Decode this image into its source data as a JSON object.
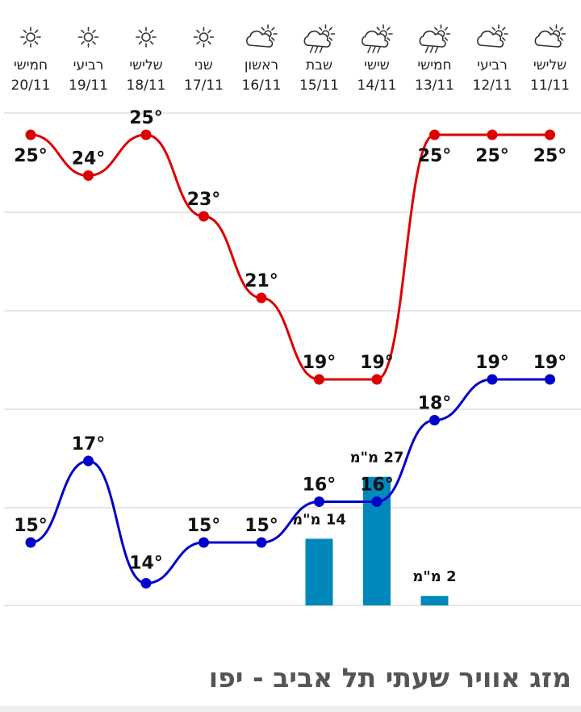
{
  "footer": {
    "title": "מזג אוויר שעתי תל אביב - יפו"
  },
  "colors": {
    "high": "#dd0000",
    "low": "#0000cc",
    "rain": "#0088bb",
    "grid": "#dddddd"
  },
  "chart_data": {
    "type": "line",
    "categories": [
      {
        "day": "חמישי",
        "date": "20/11",
        "icon": "sun-icon"
      },
      {
        "day": "רביעי",
        "date": "19/11",
        "icon": "sun-icon"
      },
      {
        "day": "שלישי",
        "date": "18/11",
        "icon": "sun-icon"
      },
      {
        "day": "שני",
        "date": "17/11",
        "icon": "sun-icon"
      },
      {
        "day": "ראשון",
        "date": "16/11",
        "icon": "partly-cloudy-icon"
      },
      {
        "day": "שבת",
        "date": "15/11",
        "icon": "rain-cloud-sun-icon"
      },
      {
        "day": "שישי",
        "date": "14/11",
        "icon": "rain-cloud-sun-icon"
      },
      {
        "day": "חמישי",
        "date": "13/11",
        "icon": "rain-cloud-sun-icon"
      },
      {
        "day": "רביעי",
        "date": "12/11",
        "icon": "partly-cloudy-icon"
      },
      {
        "day": "שלישי",
        "date": "11/11",
        "icon": "partly-cloudy-icon"
      }
    ],
    "series": [
      {
        "values": [
          25,
          24,
          25,
          23,
          21,
          19,
          19,
          25,
          25,
          25
        ]
      },
      {
        "values": [
          15,
          17,
          14,
          15,
          15,
          16,
          16,
          18,
          19,
          19
        ]
      }
    ],
    "rain": [
      {
        "index": 5,
        "value": 14,
        "unit": "מ\"מ"
      },
      {
        "index": 6,
        "value": 27,
        "unit": "מ\"מ"
      },
      {
        "index": 7,
        "value": 2,
        "unit": "מ\"מ"
      }
    ],
    "temp_unit": "°",
    "ylim": [
      13,
      26
    ],
    "grid": true
  }
}
